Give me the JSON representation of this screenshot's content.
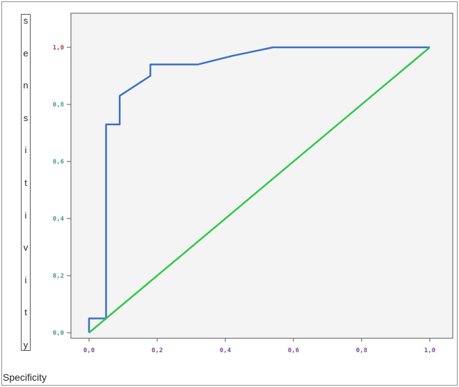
{
  "chart_data": {
    "type": "line",
    "title": "",
    "xlabel": "Specificity",
    "ylabel": "sensitivity",
    "xlim": [
      0,
      1
    ],
    "ylim": [
      0,
      1
    ],
    "x_ticks": [
      "0,0",
      "0,2",
      "0,4",
      "0,6",
      "0,8",
      "1,0"
    ],
    "y_ticks": [
      "0,0",
      "0,2",
      "0,4",
      "0,6",
      "0,8",
      "1,0"
    ],
    "grid": false,
    "series": [
      {
        "color": "#3a6ec8",
        "x": [
          0,
          0,
          0.05,
          0.05,
          0.09,
          0.09,
          0.18,
          0.18,
          0.32,
          0.42,
          0.54,
          1.0
        ],
        "y": [
          0,
          0.05,
          0.05,
          0.73,
          0.73,
          0.83,
          0.9,
          0.94,
          0.94,
          0.97,
          1.0,
          1.0
        ]
      },
      {
        "color": "#2ec84a",
        "x": [
          0,
          1
        ],
        "y": [
          0,
          1
        ]
      }
    ]
  },
  "colors": {
    "plot_background": "#f4f4f4",
    "tick_label_x": "#7a4a9a",
    "tick_label_y": "#4a9a8a",
    "tick_label_y_top": "#b04040"
  }
}
